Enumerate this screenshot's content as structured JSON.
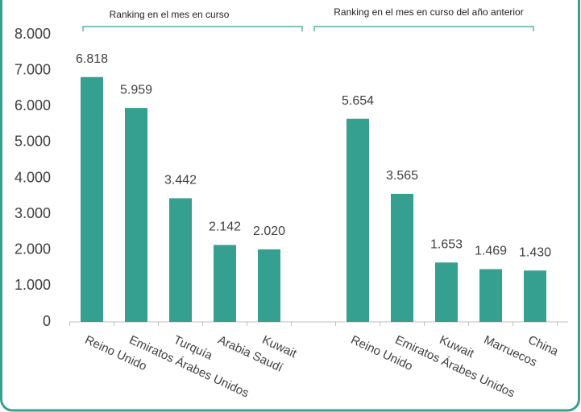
{
  "chart_data": {
    "type": "bar",
    "annotations": [
      "Ranking en el mes en curso",
      "Ranking en el mes en curso del año anterior"
    ],
    "categories": [
      "Reino Unido",
      "Emiratos Árabes Unidos",
      "Turquía",
      "Arabia Saudí",
      "Kuwait",
      null,
      "Reino Unido",
      "Emiratos Árabes Unidos",
      "Kuwait",
      "Marruecos",
      "China"
    ],
    "values": [
      6818,
      5959,
      3442,
      2142,
      2020,
      null,
      5654,
      3565,
      1653,
      1469,
      1430
    ],
    "value_labels": [
      "6.818",
      "5.959",
      "3.442",
      "2.142",
      "2.020",
      null,
      "5.654",
      "3.565",
      "1.653",
      "1.469",
      "1.430"
    ],
    "color": "#35a08f",
    "ylim": [
      0,
      8000
    ],
    "yticks": [
      0,
      {
        "value": 1000,
        "label": "1.000"
      },
      {
        "value": 2000,
        "label": "2.000"
      },
      {
        "value": 3000,
        "label": "3.000"
      },
      {
        "value": 4000,
        "label": "4.000"
      },
      {
        "value": 5000,
        "label": "5.000"
      },
      {
        "value": 6000,
        "label": "6.000"
      },
      {
        "value": 7000,
        "label": "7.000"
      },
      {
        "value": 8000,
        "label": "8.000"
      }
    ],
    "grid": false
  }
}
